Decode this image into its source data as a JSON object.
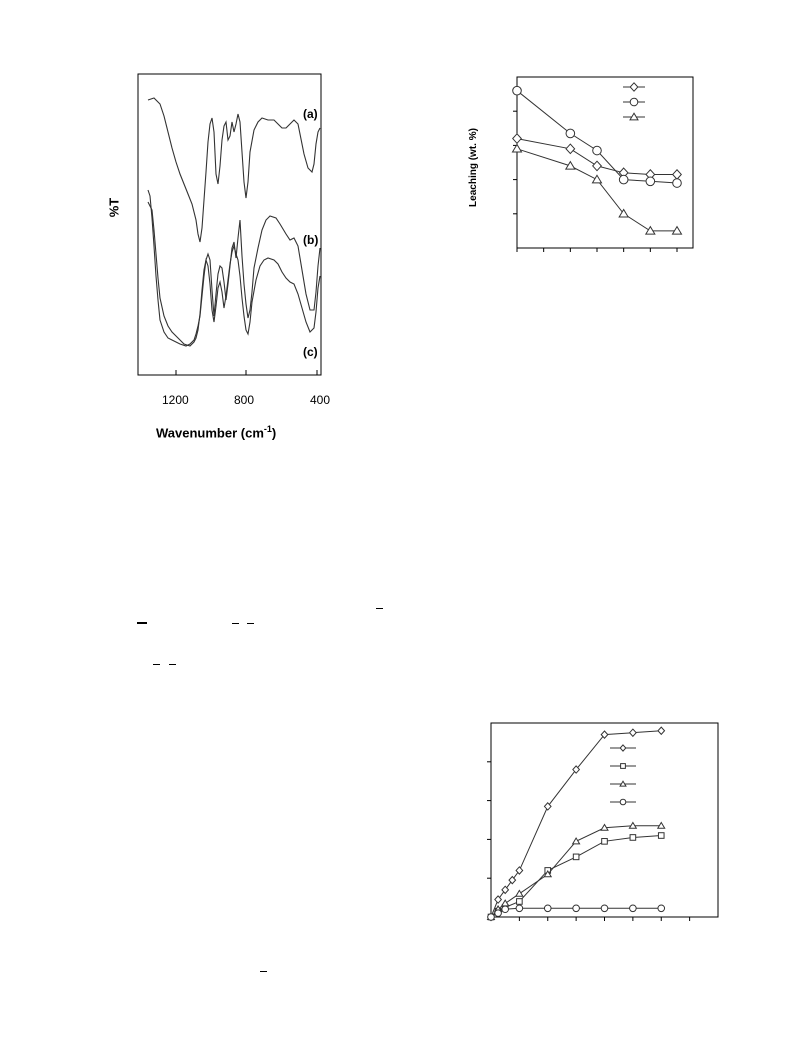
{
  "chart_data": [
    {
      "type": "line",
      "name": "ftir",
      "xlabel": "Wavenumber (cm",
      "xlabel_sup": "-1",
      "xlabel_tail": ")",
      "ylabel": "%T",
      "x_ticks": [
        "1200",
        "800",
        "400"
      ],
      "xlim": [
        1450,
        400
      ],
      "series": [
        {
          "name": "(a)"
        },
        {
          "name": "(b)"
        },
        {
          "name": "(c)"
        }
      ]
    },
    {
      "type": "line",
      "name": "leaching",
      "ylabel": "Leaching (wt. %)",
      "series": [
        {
          "marker": "diamond",
          "values": [
            [
              0,
              0.64
            ],
            [
              2,
              0.58
            ],
            [
              3,
              0.48
            ],
            [
              4,
              0.44
            ],
            [
              5,
              0.43
            ],
            [
              6,
              0.43
            ]
          ]
        },
        {
          "marker": "circle",
          "values": [
            [
              0,
              0.92
            ],
            [
              2,
              0.67
            ],
            [
              3,
              0.57
            ],
            [
              4,
              0.4
            ],
            [
              5,
              0.39
            ],
            [
              6,
              0.38
            ]
          ]
        },
        {
          "marker": "triangle",
          "values": [
            [
              0,
              0.58
            ],
            [
              2,
              0.48
            ],
            [
              3,
              0.4
            ],
            [
              4,
              0.2
            ],
            [
              5,
              0.1
            ],
            [
              6,
              0.1
            ]
          ]
        }
      ]
    },
    {
      "type": "line",
      "name": "kinetics",
      "series": [
        {
          "marker": "diamond",
          "values": [
            [
              0,
              0
            ],
            [
              0.25,
              0.09
            ],
            [
              0.5,
              0.14
            ],
            [
              0.75,
              0.19
            ],
            [
              1,
              0.24
            ],
            [
              2,
              0.57
            ],
            [
              3,
              0.76
            ],
            [
              4,
              0.94
            ],
            [
              5,
              0.95
            ],
            [
              6,
              0.96
            ]
          ]
        },
        {
          "marker": "square",
          "values": [
            [
              0,
              0
            ],
            [
              0.25,
              0.03
            ],
            [
              0.5,
              0.05
            ],
            [
              1,
              0.08
            ],
            [
              2,
              0.24
            ],
            [
              3,
              0.31
            ],
            [
              4,
              0.39
            ],
            [
              5,
              0.41
            ],
            [
              6,
              0.42
            ]
          ]
        },
        {
          "marker": "triangle",
          "values": [
            [
              0,
              0
            ],
            [
              0.25,
              0.04
            ],
            [
              0.5,
              0.07
            ],
            [
              1,
              0.12
            ],
            [
              2,
              0.22
            ],
            [
              3,
              0.39
            ],
            [
              4,
              0.46
            ],
            [
              5,
              0.47
            ],
            [
              6,
              0.47
            ]
          ]
        },
        {
          "marker": "circle",
          "values": [
            [
              0,
              0
            ],
            [
              0.25,
              0.02
            ],
            [
              0.5,
              0.04
            ],
            [
              1,
              0.045
            ],
            [
              2,
              0.045
            ],
            [
              3,
              0.045
            ],
            [
              4,
              0.045
            ],
            [
              5,
              0.045
            ],
            [
              6,
              0.045
            ]
          ]
        }
      ]
    }
  ]
}
